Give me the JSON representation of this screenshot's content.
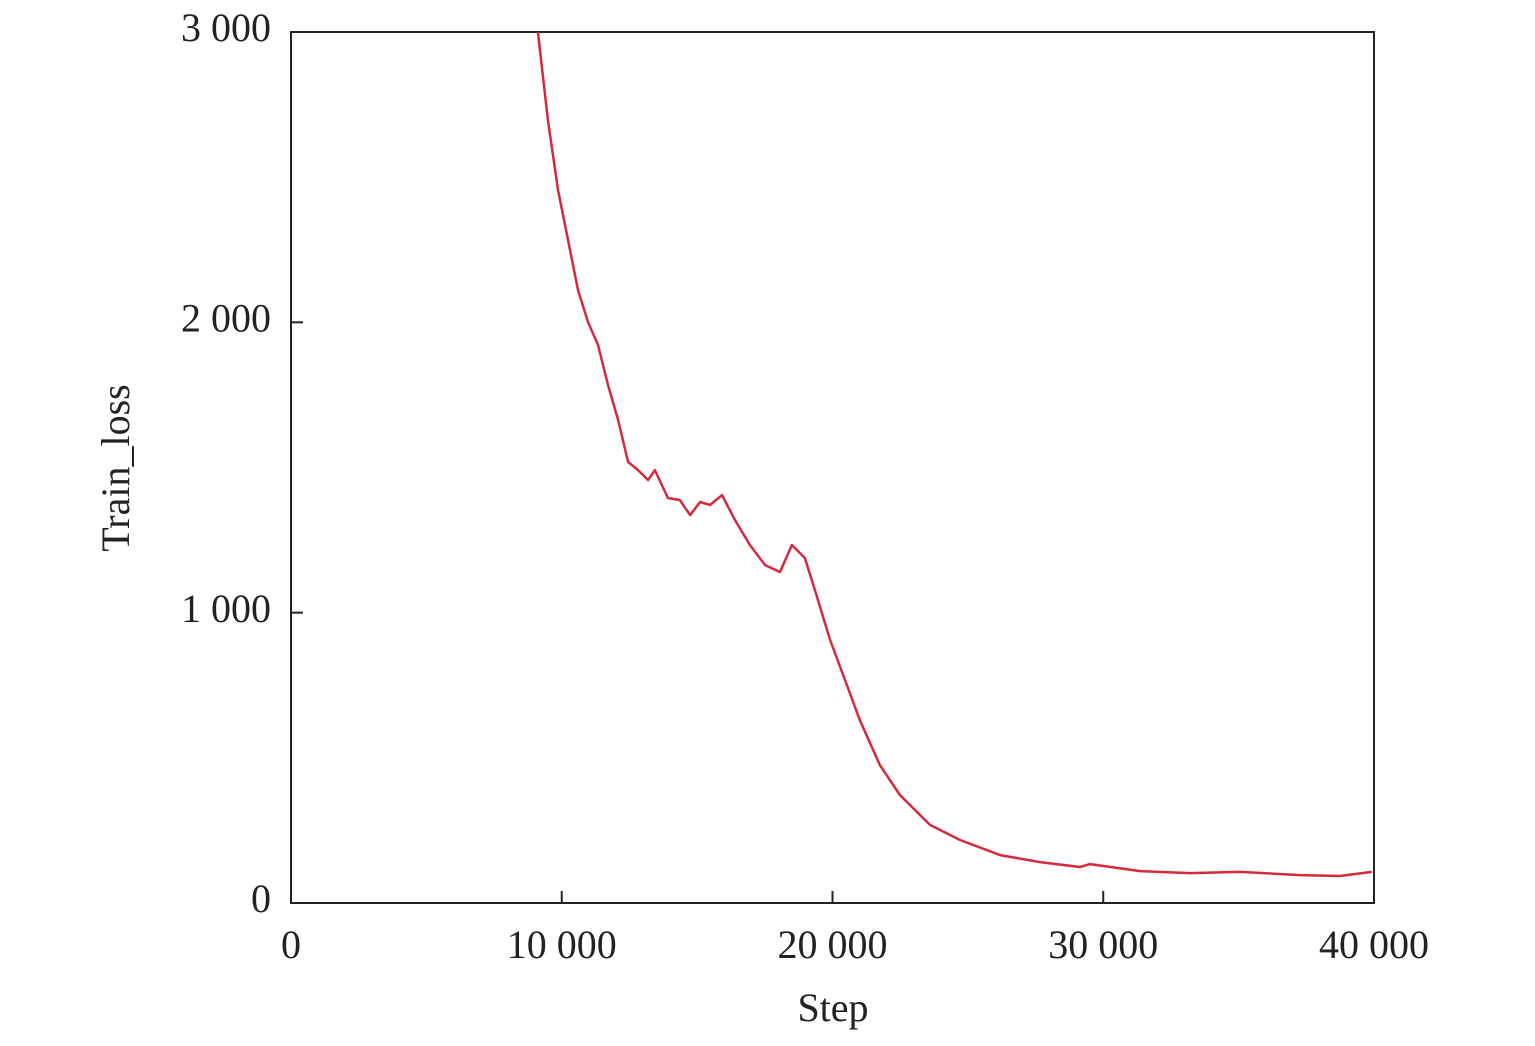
{
  "chart_data": {
    "type": "line",
    "x_label": "Step",
    "y_label": "Train_loss",
    "x": [
      9120,
      9490,
      9860,
      10230,
      10600,
      10970,
      11340,
      11710,
      12080,
      12450,
      12820,
      13190,
      13440,
      13920,
      14360,
      14740,
      15110,
      15480,
      15920,
      16400,
      16950,
      17510,
      18060,
      18500,
      18980,
      19350,
      19910,
      20460,
      21010,
      21750,
      22490,
      23600,
      24710,
      26190,
      27660,
      29140,
      29510,
      31360,
      33200,
      35050,
      37270,
      38740,
      39920
    ],
    "series": [
      {
        "name": "Train_loss",
        "color": "#d42a3c",
        "values": [
          3000,
          2697,
          2456,
          2284,
          2111,
          2001,
          1922,
          1784,
          1664,
          1519,
          1491,
          1457,
          1491,
          1395,
          1388,
          1336,
          1381,
          1371,
          1405,
          1319,
          1233,
          1164,
          1140,
          1233,
          1188,
          1078,
          906,
          768,
          630,
          475,
          372,
          269,
          217,
          165,
          141,
          124,
          134,
          110,
          103,
          107,
          96,
          93,
          107
        ]
      }
    ],
    "xlim": [
      0,
      40000
    ],
    "xticks": [
      0,
      {
        "value": 10000,
        "label": "10 000"
      },
      {
        "value": 20000,
        "label": "20 000"
      },
      {
        "value": 30000,
        "label": "30 000"
      },
      {
        "value": 40000,
        "label": "40 000"
      }
    ],
    "ylim": [
      0,
      3000
    ],
    "yticks": [
      0,
      {
        "value": 1000,
        "label": "1 000"
      },
      {
        "value": 2000,
        "label": "2 000"
      },
      {
        "value": 3000,
        "label": "3 000"
      }
    ],
    "grid": false
  }
}
